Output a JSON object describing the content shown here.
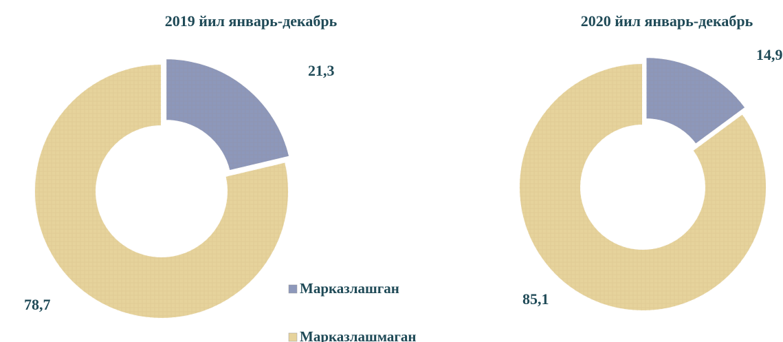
{
  "chart_data": [
    {
      "type": "donut",
      "title": "2019 йил январь-декабрь",
      "categories": [
        "Марказлашган",
        "Марказлашмаган"
      ],
      "values": [
        21.3,
        78.7
      ],
      "value_labels": [
        "21,3",
        "78,7"
      ],
      "colors": [
        "#8d98bb",
        "#e6d39c"
      ],
      "legend": "center"
    },
    {
      "type": "donut",
      "title": "2020 йил январь-декабрь",
      "categories": [
        "Марказлашган",
        "Марказлашмаган"
      ],
      "values": [
        14.9,
        85.1
      ],
      "value_labels": [
        "14,9",
        "85,1"
      ],
      "colors": [
        "#8d98bb",
        "#e6d39c"
      ]
    }
  ]
}
